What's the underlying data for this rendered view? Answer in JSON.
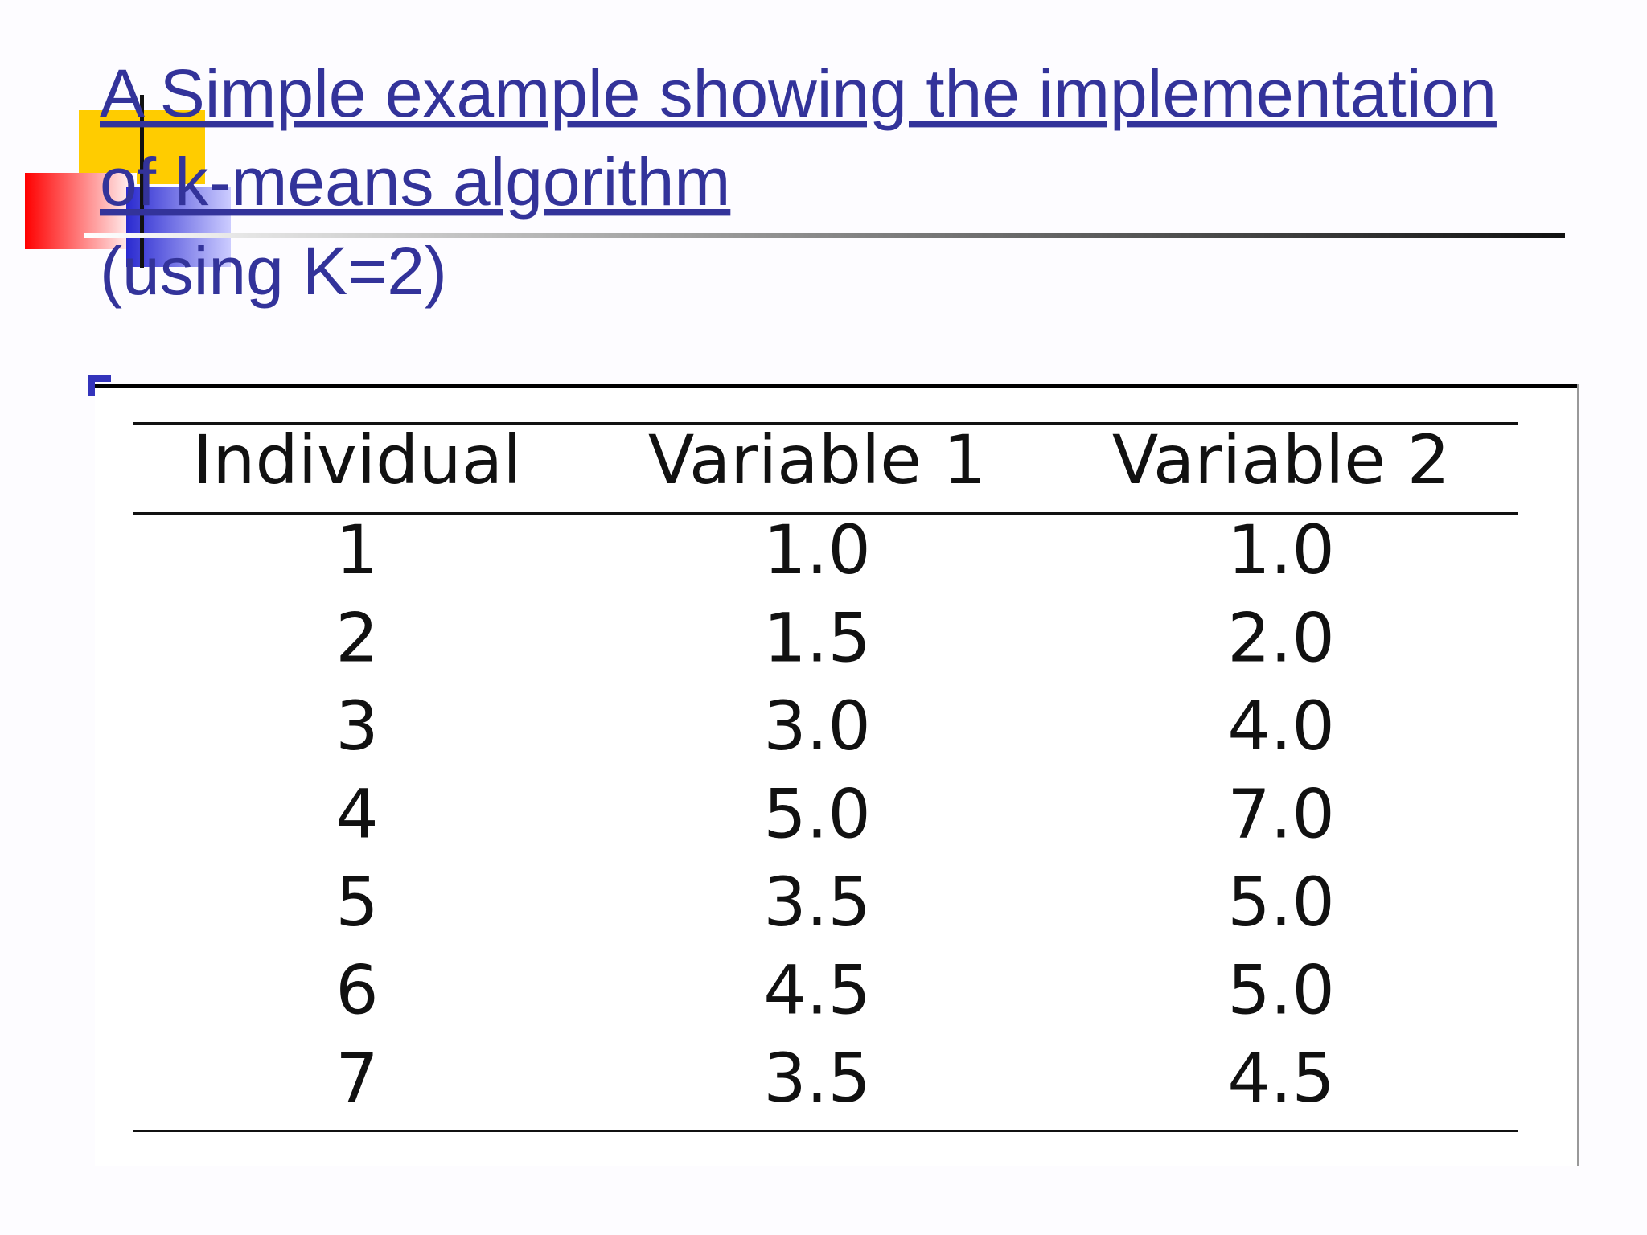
{
  "header": {
    "title": "A Simple example showing the implementation of k-means algorithm ",
    "subtitle": "(using K=2)"
  },
  "table": {
    "columns": [
      "Individual",
      "Variable 1",
      "Variable 2"
    ],
    "rows": [
      [
        "1",
        "1.0",
        "1.0"
      ],
      [
        "2",
        "1.5",
        "2.0"
      ],
      [
        "3",
        "3.0",
        "4.0"
      ],
      [
        "4",
        "5.0",
        "7.0"
      ],
      [
        "5",
        "3.5",
        "5.0"
      ],
      [
        "6",
        "4.5",
        "5.0"
      ],
      [
        "7",
        "3.5",
        "4.5"
      ]
    ]
  }
}
